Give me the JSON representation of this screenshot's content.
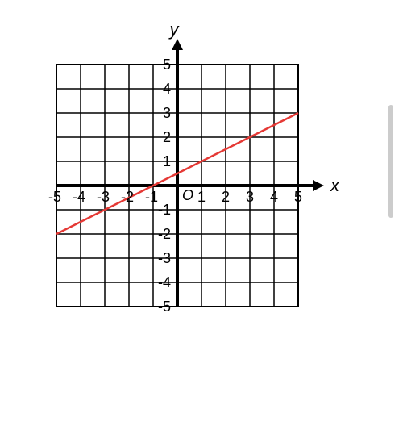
{
  "chart": {
    "type": "line",
    "xlabel": "x",
    "ylabel": "y",
    "origin_label": "O",
    "xlim": [
      -5,
      5
    ],
    "ylim": [
      -5,
      5
    ],
    "xtick_values": [
      -5,
      -4,
      -3,
      -2,
      -1,
      1,
      2,
      3,
      4,
      5
    ],
    "ytick_values": [
      -5,
      -4,
      -3,
      -2,
      -1,
      1,
      2,
      3,
      4,
      5
    ],
    "xtick_labels": [
      "-5",
      "-4",
      "-3",
      "-2",
      "-1",
      "1",
      "2",
      "3",
      "4",
      "5"
    ],
    "ytick_labels": [
      "-5",
      "-4",
      "-3",
      "-2",
      "-1",
      "1",
      "2",
      "3",
      "4",
      "5"
    ],
    "grid_color": "#000000",
    "grid_width": 1.5,
    "axis_color": "#000000",
    "axis_width": 4,
    "border_color": "#000000",
    "border_width": 2,
    "background_color": "#ffffff",
    "line": {
      "points": [
        [
          -5,
          -2
        ],
        [
          5,
          3
        ]
      ],
      "color": "#e53935",
      "width": 2.5
    },
    "cell_size": 30,
    "label_fontsize": 22,
    "tick_fontsize": 18,
    "scrollbar_color": "#cccccc"
  }
}
